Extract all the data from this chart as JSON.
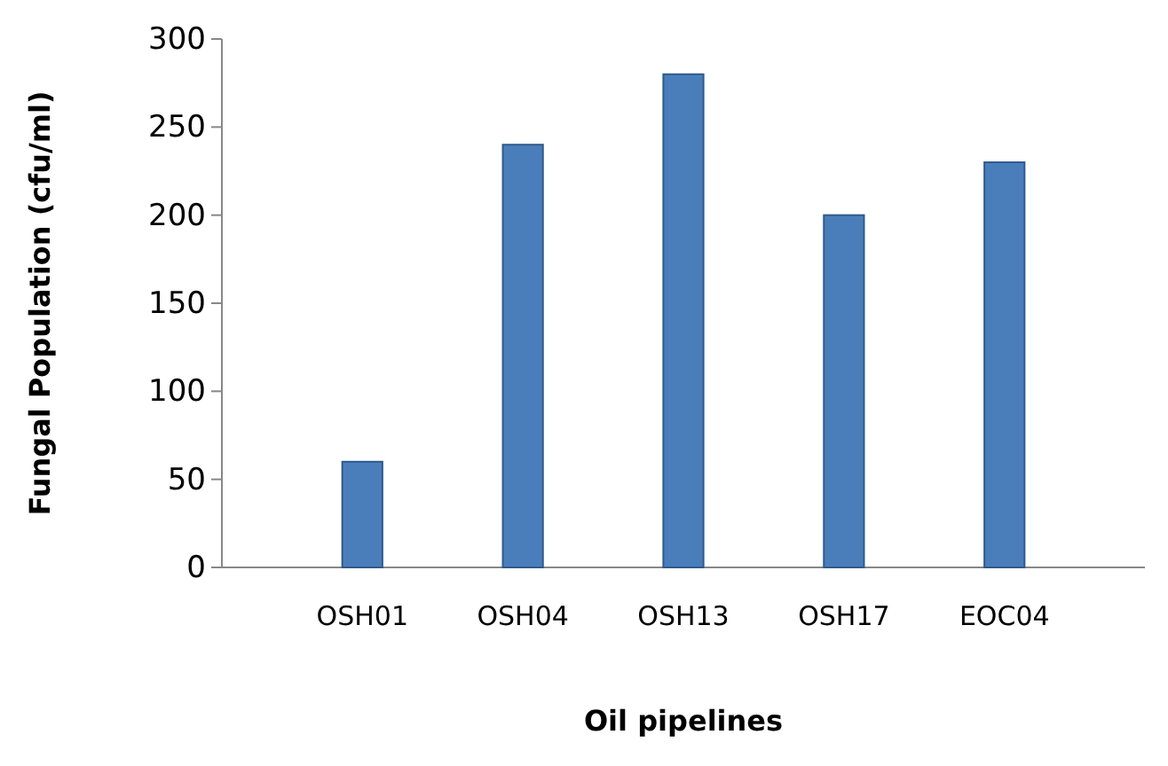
{
  "chart_data": {
    "type": "bar",
    "xlabel": "Oil pipelines",
    "ylabel": "Fungal Population (cfu/ml)",
    "categories": [
      "OSH01",
      "OSH04",
      "OSH13",
      "OSH17",
      "EOC04"
    ],
    "values": [
      60,
      240,
      280,
      200,
      230
    ],
    "color": "#4a7ebb",
    "ylim": [
      0,
      300
    ],
    "yticks": [
      0,
      50,
      100,
      150,
      200,
      250,
      300
    ],
    "grid": false
  }
}
